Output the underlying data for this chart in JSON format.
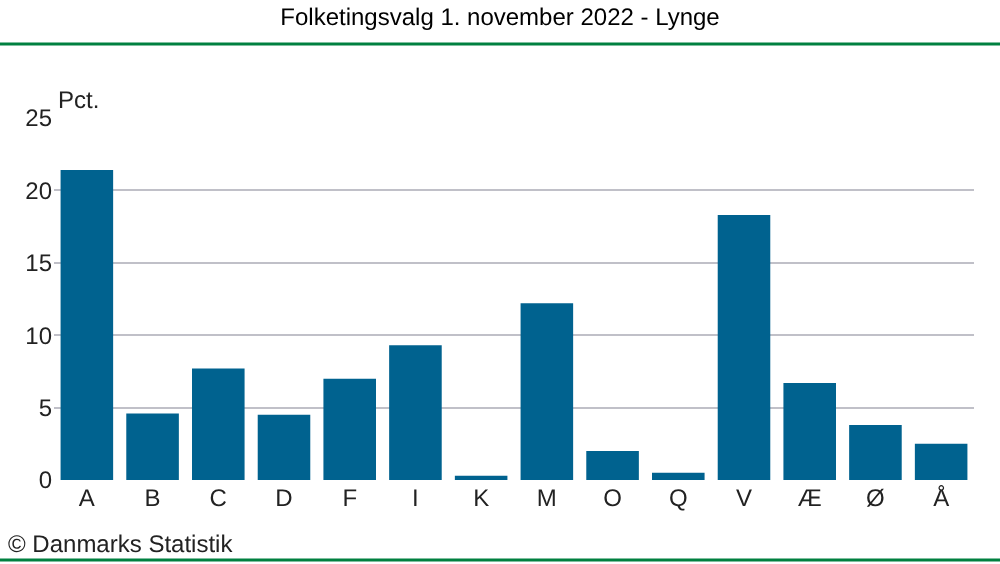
{
  "chart_data": {
    "type": "bar",
    "title": "Folketingsvalg 1. november 2022 - Lynge",
    "ylabel": "Pct.",
    "categories": [
      "A",
      "B",
      "C",
      "D",
      "F",
      "I",
      "K",
      "M",
      "O",
      "Q",
      "V",
      "Æ",
      "Ø",
      "Å"
    ],
    "values": [
      21.4,
      4.6,
      7.7,
      4.5,
      7.0,
      9.3,
      0.3,
      12.2,
      2.0,
      0.5,
      18.3,
      6.7,
      3.8,
      2.5
    ],
    "color": "#00628f",
    "ylim": [
      0,
      25
    ],
    "yticks": [
      0,
      5,
      10,
      15,
      20,
      25
    ],
    "grid": "y",
    "annotations": [
      "© Danmarks Statistik"
    ]
  }
}
